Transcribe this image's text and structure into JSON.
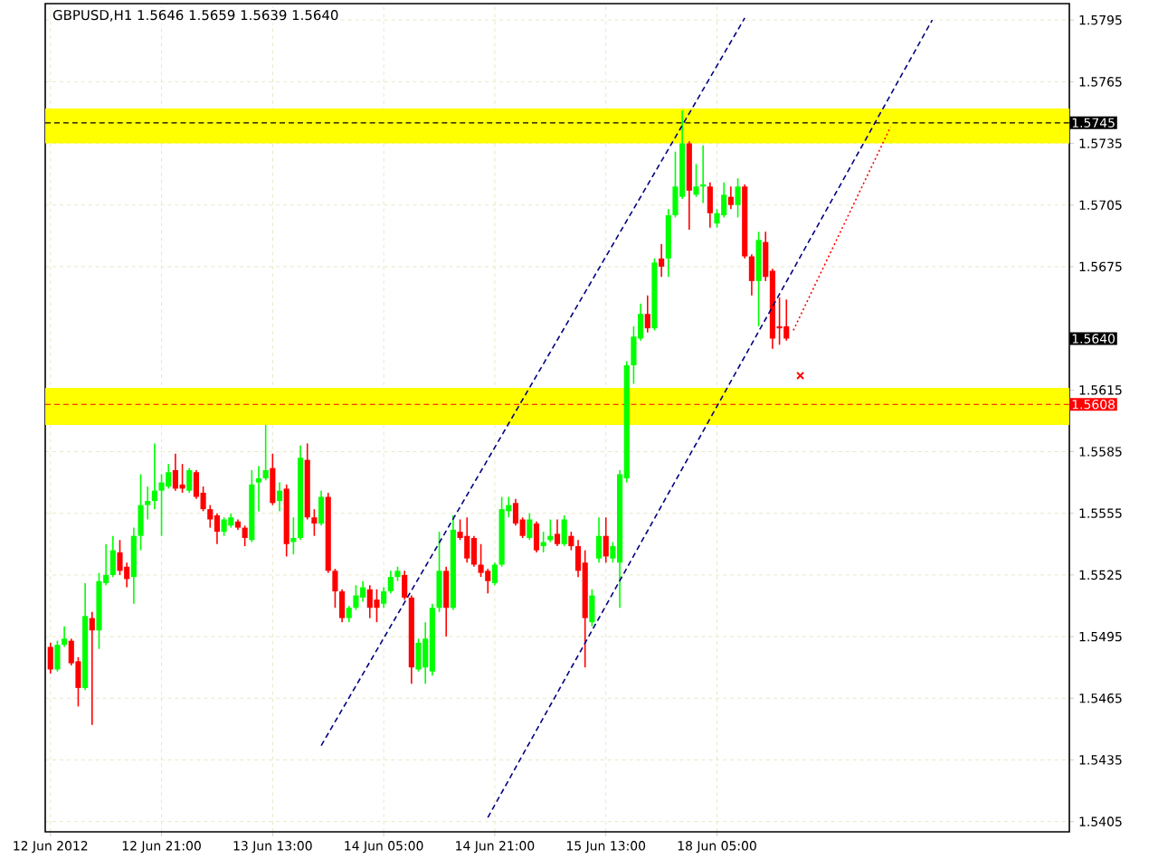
{
  "chart_data": {
    "type": "candlestick",
    "title": "GBPUSD,H1  1.5646 1.5659 1.5639 1.5640",
    "categories": [
      "12 Jun 2012",
      null,
      null,
      null,
      null,
      null,
      null,
      null,
      null,
      null,
      null,
      null,
      null,
      null,
      null,
      null,
      "12 Jun 21:00",
      null,
      null,
      null,
      null,
      null,
      null,
      null,
      null,
      null,
      null,
      null,
      null,
      null,
      null,
      null,
      "13 Jun 13:00",
      null,
      null,
      null,
      null,
      null,
      null,
      null,
      null,
      null,
      null,
      null,
      null,
      null,
      null,
      null,
      "14 Jun 05:00",
      null,
      null,
      null,
      null,
      null,
      null,
      null,
      null,
      null,
      null,
      null,
      null,
      null,
      null,
      null,
      "14 Jun 21:00",
      null,
      null,
      null,
      null,
      null,
      null,
      null,
      null,
      null,
      null,
      null,
      null,
      null,
      null,
      null,
      "15 Jun 13:00",
      null,
      null,
      null,
      null,
      null,
      null,
      null,
      null,
      null,
      null,
      null,
      null,
      null,
      null,
      null,
      "18 Jun 05:00",
      null,
      null,
      null,
      null,
      null,
      null,
      null,
      null,
      null,
      null,
      null,
      null,
      null,
      null,
      null,
      null,
      null,
      null,
      null,
      null,
      null,
      null,
      null,
      null,
      null,
      null,
      null,
      null,
      null,
      null,
      null,
      null,
      null,
      null,
      null,
      null,
      null,
      null,
      null,
      null,
      null,
      null,
      null,
      null,
      null,
      null,
      null,
      null,
      null,
      null
    ],
    "ohlc": [
      [
        1.549,
        1.5492,
        1.5477,
        1.5479
      ],
      [
        1.5479,
        1.5493,
        1.5478,
        1.5491
      ],
      [
        1.5491,
        1.55,
        1.549,
        1.5494
      ],
      [
        1.5493,
        1.5494,
        1.5481,
        1.5482
      ],
      [
        1.5483,
        1.5485,
        1.5461,
        1.547
      ],
      [
        1.547,
        1.5521,
        1.5469,
        1.5505
      ],
      [
        1.5504,
        1.5507,
        1.5452,
        1.5498
      ],
      [
        1.5498,
        1.5526,
        1.5489,
        1.5522
      ],
      [
        1.5521,
        1.554,
        1.552,
        1.5525
      ],
      [
        1.5525,
        1.5544,
        1.5524,
        1.5537
      ],
      [
        1.5536,
        1.5542,
        1.5525,
        1.5527
      ],
      [
        1.5529,
        1.5531,
        1.5519,
        1.5523
      ],
      [
        1.5524,
        1.5548,
        1.5511,
        1.5544
      ],
      [
        1.5544,
        1.5574,
        1.5537,
        1.5559
      ],
      [
        1.5559,
        1.5568,
        1.5552,
        1.5561
      ],
      [
        1.5561,
        1.5589,
        1.5557,
        1.5566
      ],
      [
        1.5566,
        1.5574,
        1.5544,
        1.557
      ],
      [
        1.5568,
        1.5579,
        1.5567,
        1.5575
      ],
      [
        1.5576,
        1.5584,
        1.5566,
        1.5567
      ],
      [
        1.5569,
        1.5579,
        1.5565,
        1.5567
      ],
      [
        1.5566,
        1.5577,
        1.5565,
        1.5576
      ],
      [
        1.5575,
        1.5576,
        1.5562,
        1.5563
      ],
      [
        1.5565,
        1.5568,
        1.5556,
        1.5557
      ],
      [
        1.5557,
        1.5559,
        1.5548,
        1.5552
      ],
      [
        1.5554,
        1.5555,
        1.554,
        1.5546
      ],
      [
        1.5546,
        1.5553,
        1.5544,
        1.5552
      ],
      [
        1.5549,
        1.5555,
        1.5548,
        1.5553
      ],
      [
        1.5551,
        1.5552,
        1.5547,
        1.5548
      ],
      [
        1.5548,
        1.5549,
        1.5539,
        1.5543
      ],
      [
        1.5542,
        1.5576,
        1.5541,
        1.5569
      ],
      [
        1.557,
        1.5578,
        1.5556,
        1.5572
      ],
      [
        1.5572,
        1.5598,
        1.5571,
        1.5576
      ],
      [
        1.5577,
        1.5584,
        1.5559,
        1.556
      ],
      [
        1.5561,
        1.557,
        1.5556,
        1.5566
      ],
      [
        1.5567,
        1.5569,
        1.5534,
        1.554
      ],
      [
        1.5541,
        1.5553,
        1.5535,
        1.5543
      ],
      [
        1.5543,
        1.5588,
        1.5542,
        1.5582
      ],
      [
        1.5581,
        1.5589,
        1.5552,
        1.5553
      ],
      [
        1.5553,
        1.5557,
        1.5544,
        1.555
      ],
      [
        1.555,
        1.5566,
        1.5549,
        1.5563
      ],
      [
        1.5563,
        1.5565,
        1.5526,
        1.5527
      ],
      [
        1.5527,
        1.5528,
        1.5509,
        1.5517
      ],
      [
        1.5517,
        1.5518,
        1.5502,
        1.5504
      ],
      [
        1.5504,
        1.551,
        1.5502,
        1.5509
      ],
      [
        1.5509,
        1.552,
        1.5508,
        1.5515
      ],
      [
        1.5514,
        1.5522,
        1.5512,
        1.5519
      ],
      [
        1.5518,
        1.552,
        1.5504,
        1.5509
      ],
      [
        1.5513,
        1.5518,
        1.5502,
        1.5509
      ],
      [
        1.5511,
        1.5519,
        1.5509,
        1.5517
      ],
      [
        1.5517,
        1.5527,
        1.5516,
        1.5524
      ],
      [
        1.5524,
        1.5529,
        1.5522,
        1.5527
      ],
      [
        1.5525,
        1.5527,
        1.5513,
        1.5514
      ],
      [
        1.5514,
        1.5515,
        1.5472,
        1.548
      ],
      [
        1.5479,
        1.5494,
        1.5478,
        1.5492
      ],
      [
        1.548,
        1.5502,
        1.5472,
        1.5494
      ],
      [
        1.5478,
        1.5511,
        1.5476,
        1.5509
      ],
      [
        1.5509,
        1.5546,
        1.5507,
        1.5527
      ],
      [
        1.5527,
        1.5529,
        1.5495,
        1.5509
      ],
      [
        1.5509,
        1.5554,
        1.5508,
        1.5547
      ],
      [
        1.5546,
        1.5552,
        1.5542,
        1.5543
      ],
      [
        1.5544,
        1.5553,
        1.5531,
        1.5533
      ],
      [
        1.5543,
        1.5544,
        1.5529,
        1.553
      ],
      [
        1.553,
        1.554,
        1.5524,
        1.5526
      ],
      [
        1.5527,
        1.5528,
        1.5516,
        1.5522
      ],
      [
        1.5521,
        1.5531,
        1.552,
        1.553
      ],
      [
        1.553,
        1.5563,
        1.5529,
        1.5557
      ],
      [
        1.5556,
        1.5563,
        1.5553,
        1.5559
      ],
      [
        1.556,
        1.5562,
        1.5549,
        1.555
      ],
      [
        1.5552,
        1.5553,
        1.5543,
        1.5544
      ],
      [
        1.5543,
        1.5555,
        1.5542,
        1.5552
      ],
      [
        1.555,
        1.5551,
        1.5536,
        1.5537
      ],
      [
        1.5539,
        1.5546,
        1.5536,
        1.5541
      ],
      [
        1.5542,
        1.5552,
        1.5541,
        1.5544
      ],
      [
        1.5545,
        1.5552,
        1.5539,
        1.554
      ],
      [
        1.554,
        1.5554,
        1.5539,
        1.5552
      ],
      [
        1.5544,
        1.5546,
        1.5537,
        1.5539
      ],
      [
        1.5539,
        1.5542,
        1.5524,
        1.5527
      ],
      [
        1.5531,
        1.5537,
        1.548,
        1.5504
      ],
      [
        1.5502,
        1.5518,
        1.55,
        1.5515
      ],
      [
        1.5533,
        1.5553,
        1.5531,
        1.5544
      ],
      [
        1.5544,
        1.5553,
        1.5531,
        1.5534
      ],
      [
        1.5533,
        1.5541,
        1.5531,
        1.5539
      ],
      [
        1.5531,
        1.5576,
        1.5509,
        1.5574
      ],
      [
        1.5572,
        1.5629,
        1.557,
        1.5627
      ],
      [
        1.5627,
        1.5646,
        1.5618,
        1.5641
      ],
      [
        1.564,
        1.5657,
        1.5639,
        1.5652
      ],
      [
        1.5652,
        1.5661,
        1.5643,
        1.5645
      ],
      [
        1.5645,
        1.5679,
        1.5644,
        1.5677
      ],
      [
        1.5679,
        1.5686,
        1.567,
        1.5675
      ],
      [
        1.5679,
        1.5703,
        1.567,
        1.57
      ],
      [
        1.57,
        1.5731,
        1.5699,
        1.5714
      ],
      [
        1.5709,
        1.5751,
        1.5708,
        1.5735
      ],
      [
        1.5735,
        1.5736,
        1.5693,
        1.5712
      ],
      [
        1.571,
        1.5725,
        1.5709,
        1.5714
      ],
      [
        1.5714,
        1.5734,
        1.5706,
        1.5715
      ],
      [
        1.5714,
        1.5716,
        1.5694,
        1.5701
      ],
      [
        1.5696,
        1.5703,
        1.5694,
        1.5701
      ],
      [
        1.57,
        1.5716,
        1.5699,
        1.571
      ],
      [
        1.5709,
        1.5714,
        1.5703,
        1.5705
      ],
      [
        1.5705,
        1.5718,
        1.5699,
        1.5714
      ],
      [
        1.5714,
        1.5715,
        1.5679,
        1.568
      ],
      [
        1.568,
        1.5681,
        1.5661,
        1.5668
      ],
      [
        1.5668,
        1.5692,
        1.5646,
        1.5688
      ],
      [
        1.5687,
        1.5692,
        1.5668,
        1.567
      ],
      [
        1.5673,
        1.5674,
        1.5635,
        1.564
      ],
      [
        1.5646,
        1.566,
        1.5637,
        1.5645
      ],
      [
        1.5646,
        1.5659,
        1.5639,
        1.564
      ],
      null,
      null,
      null,
      null,
      null,
      null,
      null,
      null,
      null,
      null,
      null,
      null,
      null,
      null,
      null,
      null,
      null,
      null,
      null,
      null,
      null,
      null,
      null,
      null,
      null,
      null,
      null,
      null,
      null,
      null,
      null,
      null,
      null,
      null,
      null,
      null,
      null,
      null,
      null,
      null
    ],
    "colors": [
      "#ff0000",
      "#00ff00",
      "#00ff00",
      "#ff0000",
      "#ff0000",
      "#00ff00",
      "#ff0000",
      "#00ff00",
      "#00ff00",
      "#00ff00",
      "#ff0000",
      "#ff0000",
      "#00ff00",
      "#00ff00",
      "#00ff00",
      "#00ff00",
      "#00ff00",
      "#00ff00",
      "#ff0000",
      "#ff0000",
      "#00ff00",
      "#ff0000",
      "#ff0000",
      "#ff0000",
      "#ff0000",
      "#00ff00",
      "#00ff00",
      "#ff0000",
      "#ff0000",
      "#00ff00",
      "#00ff00",
      "#00ff00",
      "#ff0000",
      "#00ff00",
      "#ff0000",
      "#00ff00",
      "#00ff00",
      "#ff0000",
      "#ff0000",
      "#00ff00",
      "#ff0000",
      "#ff0000",
      "#ff0000",
      "#00ff00",
      "#00ff00",
      "#00ff00",
      "#ff0000",
      "#ff0000",
      "#00ff00",
      "#00ff00",
      "#00ff00",
      "#ff0000",
      "#ff0000",
      "#00ff00",
      "#00ff00",
      "#00ff00",
      "#00ff00",
      "#ff0000",
      "#00ff00",
      "#ff0000",
      "#ff0000",
      "#ff0000",
      "#ff0000",
      "#ff0000",
      "#00ff00",
      "#00ff00",
      "#00ff00",
      "#ff0000",
      "#ff0000",
      "#00ff00",
      "#ff0000",
      "#00ff00",
      "#00ff00",
      "#ff0000",
      "#00ff00",
      "#ff0000",
      "#ff0000",
      "#ff0000",
      "#00ff00",
      "#00ff00",
      "#ff0000",
      "#00ff00",
      "#00ff00",
      "#00ff00",
      "#00ff00",
      "#00ff00",
      "#ff0000",
      "#00ff00",
      "#ff0000",
      "#00ff00",
      "#00ff00",
      "#00ff00",
      "#ff0000",
      "#00ff00",
      "#00ff00",
      "#ff0000",
      "#00ff00",
      "#00ff00",
      "#ff0000",
      "#00ff00",
      "#ff0000",
      "#ff0000",
      "#00ff00",
      "#ff0000",
      "#ff0000",
      "#ff0000",
      "#ff0000",
      null,
      null,
      null,
      null,
      null,
      null,
      null,
      null,
      null,
      null,
      null,
      null,
      null,
      null,
      null,
      null,
      null,
      null,
      null,
      null,
      null,
      null,
      null,
      null,
      null,
      null,
      null,
      null,
      null,
      null,
      null,
      null,
      null,
      null,
      null,
      null,
      null,
      null,
      null,
      null
    ],
    "series": [
      {
        "type": "line",
        "color": "#000080",
        "line_style": "dashed",
        "values": [
          null,
          null,
          null,
          null,
          null,
          null,
          null,
          null,
          null,
          null,
          null,
          null,
          null,
          null,
          null,
          null,
          null,
          null,
          null,
          null,
          null,
          null,
          null,
          null,
          null,
          null,
          null,
          null,
          null,
          null,
          null,
          null,
          null,
          null,
          null,
          null,
          null,
          null,
          null,
          1.5442,
          null,
          null,
          null,
          null,
          null,
          null,
          null,
          null,
          null,
          null,
          null,
          null,
          null,
          null,
          null,
          null,
          null,
          null,
          null,
          null,
          null,
          null,
          null,
          null,
          null,
          null,
          null,
          null,
          null,
          null,
          null,
          null,
          null,
          null,
          null,
          null,
          null,
          null,
          null,
          null,
          null,
          null,
          null,
          null,
          null,
          null,
          null,
          null,
          null,
          null,
          null,
          null,
          null,
          null,
          null,
          null,
          null,
          null,
          null,
          null,
          1.5796,
          null,
          null,
          null,
          null,
          null,
          null,
          null,
          null,
          null,
          null,
          null,
          null,
          null,
          null,
          null,
          null,
          null,
          null,
          null,
          null,
          null,
          null,
          null,
          null,
          null,
          null,
          null,
          null,
          null,
          null,
          null,
          null,
          null,
          null,
          null,
          null,
          null,
          null,
          null,
          null,
          null,
          null,
          null,
          null,
          null,
          null
        ]
      },
      {
        "type": "line",
        "color": "#000080",
        "line_style": "dashed",
        "values": [
          null,
          null,
          null,
          null,
          null,
          null,
          null,
          null,
          null,
          null,
          null,
          null,
          null,
          null,
          null,
          null,
          null,
          null,
          null,
          null,
          null,
          null,
          null,
          null,
          null,
          null,
          null,
          null,
          null,
          null,
          null,
          null,
          null,
          null,
          null,
          null,
          null,
          null,
          null,
          null,
          null,
          null,
          null,
          null,
          null,
          null,
          null,
          null,
          null,
          null,
          null,
          null,
          null,
          null,
          null,
          null,
          null,
          null,
          null,
          null,
          null,
          null,
          null,
          1.5407,
          null,
          null,
          null,
          null,
          null,
          null,
          null,
          null,
          null,
          null,
          null,
          null,
          null,
          null,
          null,
          null,
          null,
          null,
          null,
          null,
          null,
          null,
          null,
          null,
          null,
          null,
          null,
          null,
          null,
          null,
          null,
          null,
          null,
          null,
          null,
          null,
          null,
          null,
          null,
          null,
          null,
          null,
          null,
          null,
          null,
          null,
          null,
          null,
          null,
          null,
          null,
          null,
          null,
          null,
          null,
          null,
          null,
          null,
          null,
          null,
          null,
          null,
          null,
          1.5795,
          null,
          null,
          null,
          null,
          null,
          null,
          null,
          null,
          null,
          null,
          null,
          null,
          null,
          null,
          null,
          null,
          null,
          null,
          null
        ]
      },
      {
        "type": "line",
        "color": "#ff0000",
        "line_style": "dotted",
        "values": [
          null,
          null,
          null,
          null,
          null,
          null,
          null,
          null,
          null,
          null,
          null,
          null,
          null,
          null,
          null,
          null,
          null,
          null,
          null,
          null,
          null,
          null,
          null,
          null,
          null,
          null,
          null,
          null,
          null,
          null,
          null,
          null,
          null,
          null,
          null,
          null,
          null,
          null,
          null,
          null,
          null,
          null,
          null,
          null,
          null,
          null,
          null,
          null,
          null,
          null,
          null,
          null,
          null,
          null,
          null,
          null,
          null,
          null,
          null,
          null,
          null,
          null,
          null,
          null,
          null,
          null,
          null,
          null,
          null,
          null,
          null,
          null,
          null,
          null,
          null,
          null,
          null,
          null,
          null,
          null,
          null,
          null,
          null,
          null,
          null,
          null,
          null,
          null,
          null,
          null,
          null,
          null,
          null,
          null,
          null,
          null,
          null,
          null,
          null,
          null,
          null,
          null,
          null,
          null,
          null,
          null,
          null,
          1.5644,
          null,
          null,
          null,
          null,
          null,
          null,
          null,
          null,
          null,
          null,
          null,
          null,
          null,
          1.5743,
          null,
          null,
          null,
          null,
          null,
          null,
          null,
          null,
          null,
          null,
          null,
          null,
          null,
          null,
          null,
          null,
          null,
          null,
          null,
          null,
          null,
          null,
          null,
          null,
          null
        ]
      },
      {
        "type": "scatter",
        "color": "#ff0000",
        "marker": "cross",
        "values": [
          null,
          null,
          null,
          null,
          null,
          null,
          null,
          null,
          null,
          null,
          null,
          null,
          null,
          null,
          null,
          null,
          null,
          null,
          null,
          null,
          null,
          null,
          null,
          null,
          null,
          null,
          null,
          null,
          null,
          null,
          null,
          null,
          null,
          null,
          null,
          null,
          null,
          null,
          null,
          null,
          null,
          null,
          null,
          null,
          null,
          null,
          null,
          null,
          null,
          null,
          null,
          null,
          null,
          null,
          null,
          null,
          null,
          null,
          null,
          null,
          null,
          null,
          null,
          null,
          null,
          null,
          null,
          null,
          null,
          null,
          null,
          null,
          null,
          null,
          null,
          null,
          null,
          null,
          null,
          null,
          null,
          null,
          null,
          null,
          null,
          null,
          null,
          null,
          null,
          null,
          null,
          null,
          null,
          null,
          null,
          null,
          null,
          null,
          null,
          null,
          null,
          null,
          null,
          null,
          null,
          null,
          null,
          null,
          1.5622,
          null,
          null,
          null,
          null,
          null,
          null,
          null,
          null,
          null,
          null,
          null,
          null,
          null,
          null,
          null,
          null,
          null,
          null,
          null,
          null,
          null,
          null,
          null,
          null,
          null,
          null,
          null,
          null,
          null,
          null,
          null,
          null,
          null,
          null,
          null,
          null,
          null,
          null
        ]
      }
    ],
    "ylim": [
      1.54,
      1.5803
    ],
    "yticks": [
      1.5405,
      1.5435,
      1.5465,
      1.5495,
      1.5525,
      1.5555,
      1.5585,
      1.5615,
      1.5675,
      1.5705,
      1.5735,
      1.5765,
      1.5795
    ],
    "ref_lines": [
      {
        "axis": "y",
        "value": 1.5745,
        "label": "1.5745",
        "color": "#000000",
        "line_style": "dashed"
      },
      {
        "axis": "y",
        "value": 1.5608,
        "label": "1.5608",
        "color": "#ff0000",
        "line_style": "dashed"
      }
    ],
    "bands": [
      {
        "axis": "y",
        "from": 1.5735,
        "to": 1.5752,
        "color": "#ffff00"
      },
      {
        "axis": "y",
        "from": 1.5598,
        "to": 1.5616,
        "color": "#ffff00"
      }
    ],
    "annotations": [
      "1.5640"
    ],
    "grid": true
  }
}
